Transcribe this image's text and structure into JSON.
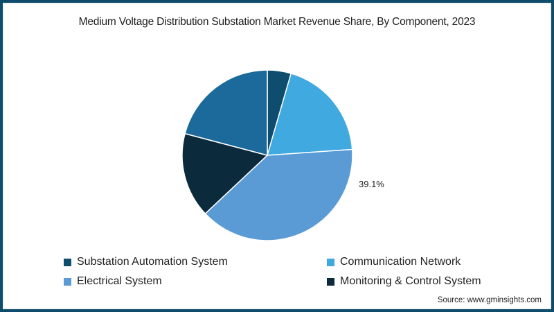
{
  "chart_data": {
    "type": "pie",
    "title": "Medium Voltage Distribution Substation Market Revenue Share, By Component, 2023",
    "slices": [
      {
        "name": "Substation Automation System",
        "value": 4.5,
        "color": "#0e4d6e"
      },
      {
        "name": "Communication Network",
        "value": 19.4,
        "color": "#3fa9e0"
      },
      {
        "name": "Electrical System",
        "value": 39.1,
        "color": "#5b9bd5",
        "label": "39.1%"
      },
      {
        "name": "Monitoring & Control System",
        "value": 16.1,
        "color": "#0b2a3c"
      },
      {
        "name": "",
        "value": 20.9,
        "color": "#1b6a9b"
      }
    ],
    "start_angle_deg": 0,
    "direction": "clockwise",
    "annotations": [
      "39.1%"
    ],
    "legend": {
      "position": "bottom",
      "entries": [
        {
          "label": "Substation Automation System",
          "color": "#0e4d6e"
        },
        {
          "label": "Communication Network",
          "color": "#3fa9e0"
        },
        {
          "label": "Electrical System",
          "color": "#5b9bd5"
        },
        {
          "label": "Monitoring & Control System",
          "color": "#0b2a3c"
        }
      ]
    }
  },
  "page": {
    "title": "Medium Voltage Distribution Substation Market Revenue Share, By Component, 2023",
    "highlight_label": "39.1%",
    "source": "Source: www.gminsights.com",
    "border_color": "#0f4c6b"
  }
}
